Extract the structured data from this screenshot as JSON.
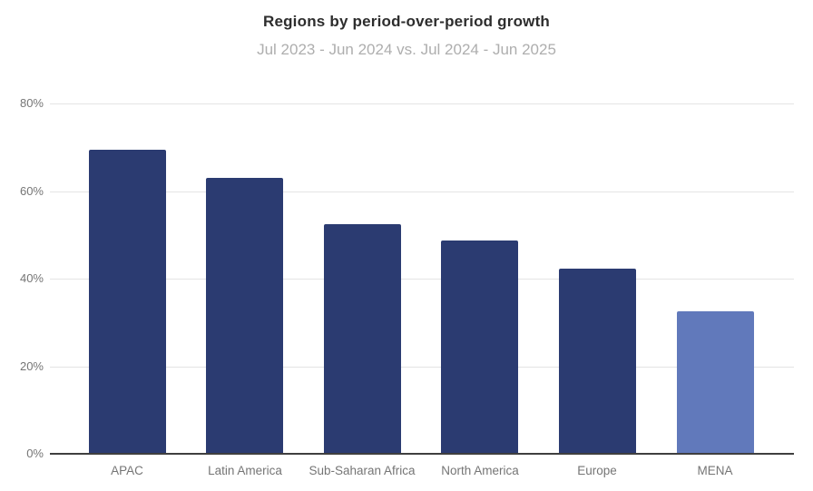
{
  "chart": {
    "title": "Regions by period-over-period growth",
    "subtitle": "Jul 2023 - Jun 2024 vs. Jul 2024 - Jun 2025"
  },
  "chart_data": {
    "type": "bar",
    "title": "Regions by period-over-period growth",
    "subtitle": "Jul 2023 - Jun 2024 vs. Jul 2024 - Jun 2025",
    "categories": [
      "APAC",
      "Latin America",
      "Sub-Saharan Africa",
      "North America",
      "Europe",
      "MENA"
    ],
    "values": [
      69.5,
      63.0,
      52.4,
      48.7,
      42.3,
      32.5
    ],
    "unit": "%",
    "xlabel": "",
    "ylabel": "",
    "ylim": [
      0,
      80
    ],
    "yticks": [
      0,
      20,
      40,
      60,
      80
    ],
    "ytick_labels": [
      "0%",
      "20%",
      "40%",
      "60%",
      "80%"
    ],
    "grid": true,
    "legend": false,
    "highlight_index": 5,
    "colors": {
      "bar_default": "#2b3b71",
      "bar_highlight": "#6179bb",
      "gridline": "#e4e4e4",
      "axis_line": "#3f3f3f",
      "tick_label": "#757575",
      "title": "#2d2d2d",
      "subtitle": "#aeaeae",
      "background": "#ffffff"
    }
  }
}
